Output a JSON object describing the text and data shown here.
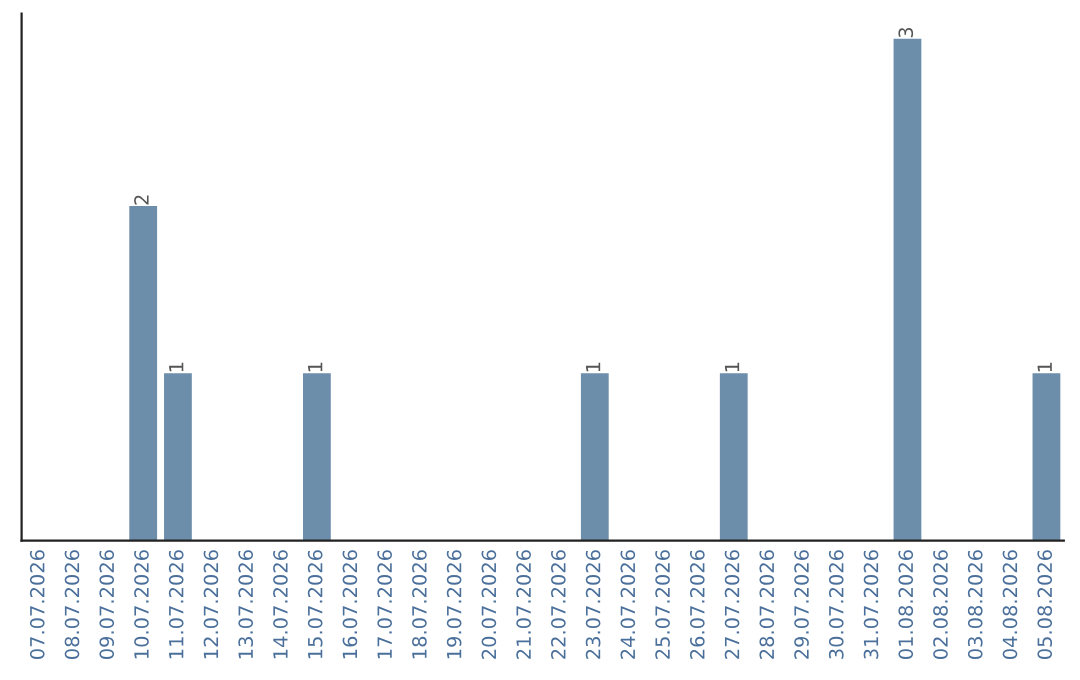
{
  "chart_data": {
    "type": "bar",
    "categories": [
      "07.07.2026",
      "08.07.2026",
      "09.07.2026",
      "10.07.2026",
      "11.07.2026",
      "12.07.2026",
      "13.07.2026",
      "14.07.2026",
      "15.07.2026",
      "16.07.2026",
      "17.07.2026",
      "18.07.2026",
      "19.07.2026",
      "20.07.2026",
      "21.07.2026",
      "22.07.2026",
      "23.07.2026",
      "24.07.2026",
      "25.07.2026",
      "26.07.2026",
      "27.07.2026",
      "28.07.2026",
      "29.07.2026",
      "30.07.2026",
      "31.07.2026",
      "01.08.2026",
      "02.08.2026",
      "03.08.2026",
      "04.08.2026",
      "05.08.2026"
    ],
    "values": [
      0,
      0,
      0,
      2,
      1,
      0,
      0,
      0,
      1,
      0,
      0,
      0,
      0,
      0,
      0,
      0,
      1,
      0,
      0,
      0,
      1,
      0,
      0,
      0,
      0,
      3,
      0,
      0,
      0,
      1
    ],
    "value_labels": [
      null,
      null,
      null,
      "2",
      "1",
      null,
      null,
      null,
      "1",
      null,
      null,
      null,
      null,
      null,
      null,
      null,
      "1",
      null,
      null,
      null,
      "1",
      null,
      null,
      null,
      null,
      "3",
      null,
      null,
      null,
      "1"
    ],
    "color": "#6d8eab",
    "grid": false,
    "legend": false
  }
}
